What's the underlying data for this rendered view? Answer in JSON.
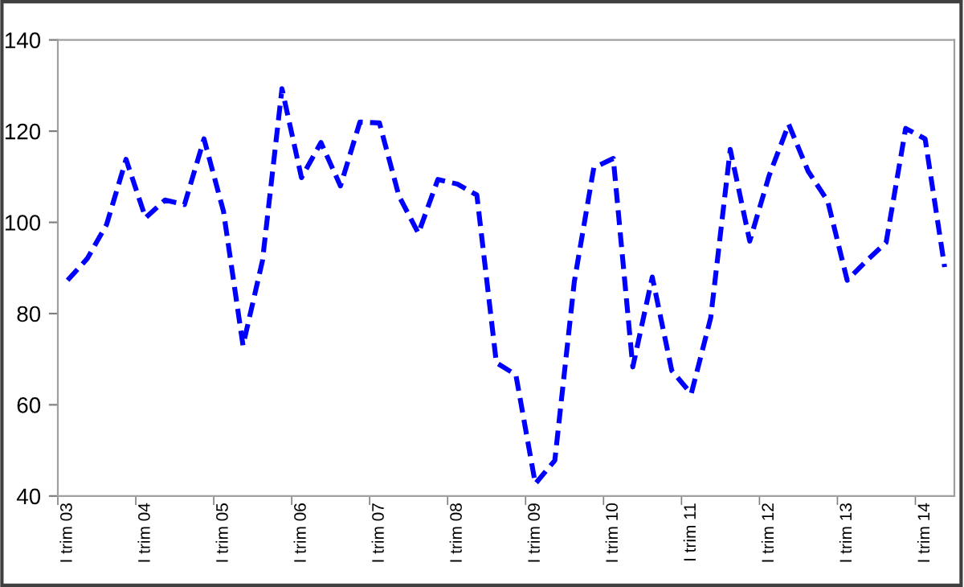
{
  "chart_data": {
    "type": "line",
    "categories": [
      "I trim 03",
      null,
      null,
      null,
      "I trim 04",
      null,
      null,
      null,
      "I trim 05",
      null,
      null,
      null,
      "I trim 06",
      null,
      null,
      null,
      "I trim 07",
      null,
      null,
      null,
      "I trim 08",
      null,
      null,
      null,
      "I trim 09",
      null,
      null,
      null,
      "I trim 10",
      null,
      null,
      null,
      "I trim 11",
      null,
      null,
      null,
      "I trim 12",
      null,
      null,
      null,
      "I trim 13",
      null,
      null,
      null,
      "I trim 14",
      null
    ],
    "series": [
      {
        "color": "#0000ff",
        "line_style": "dashed",
        "values": [
          87.3,
          92,
          99.5,
          113.8,
          101,
          104.9,
          103.9,
          118.3,
          102.4,
          73,
          91.6,
          129.3,
          109.8,
          117.5,
          108,
          122,
          121.8,
          105.8,
          97.6,
          109.4,
          108.4,
          106,
          69.2,
          66.6,
          42.7,
          47.8,
          87,
          112,
          114,
          68.3,
          88,
          67.5,
          62.4,
          79.1,
          116,
          95.9,
          110.3,
          121.5,
          111.2,
          104.7,
          87.3,
          91.6,
          95.6,
          120.6,
          118.3,
          90.2
        ]
      }
    ],
    "ylim": [
      40,
      140
    ],
    "yticks": [
      40,
      60,
      80,
      100,
      120,
      140
    ],
    "grid": false,
    "legend": false,
    "marker": "none"
  }
}
